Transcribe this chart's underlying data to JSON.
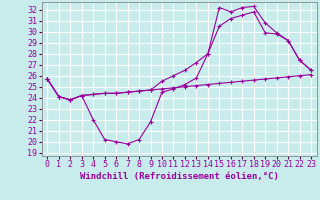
{
  "title": "",
  "xlabel": "Windchill (Refroidissement éolien,°C)",
  "ylabel": "",
  "bg_color": "#c8ecec",
  "line_color": "#990099",
  "grid_color": "#ffffff",
  "xlim": [
    -0.5,
    23.5
  ],
  "ylim": [
    18.7,
    32.7
  ],
  "yticks": [
    19,
    20,
    21,
    22,
    23,
    24,
    25,
    26,
    27,
    28,
    29,
    30,
    31,
    32
  ],
  "xticks": [
    0,
    1,
    2,
    3,
    4,
    5,
    6,
    7,
    8,
    9,
    10,
    11,
    12,
    13,
    14,
    15,
    16,
    17,
    18,
    19,
    20,
    21,
    22,
    23
  ],
  "hours": [
    0,
    1,
    2,
    3,
    4,
    5,
    6,
    7,
    8,
    9,
    10,
    11,
    12,
    13,
    14,
    15,
    16,
    17,
    18,
    19,
    20,
    21,
    22,
    23
  ],
  "line1": [
    25.7,
    24.1,
    23.8,
    24.2,
    24.3,
    24.4,
    24.4,
    24.5,
    24.6,
    24.7,
    24.8,
    24.9,
    25.0,
    25.1,
    25.2,
    25.3,
    25.4,
    25.5,
    25.6,
    25.7,
    25.8,
    25.9,
    26.0,
    26.1
  ],
  "line2": [
    25.7,
    24.1,
    23.8,
    24.2,
    22.0,
    20.2,
    20.0,
    19.8,
    20.2,
    21.8,
    24.5,
    24.8,
    25.2,
    25.8,
    28.0,
    30.5,
    31.2,
    31.5,
    31.8,
    29.9,
    29.8,
    29.2,
    27.4,
    26.5
  ],
  "line3": [
    25.7,
    24.1,
    23.8,
    24.2,
    24.3,
    24.4,
    24.4,
    24.5,
    24.6,
    24.7,
    25.5,
    26.0,
    26.5,
    27.2,
    28.0,
    32.2,
    31.8,
    32.2,
    32.3,
    30.8,
    29.9,
    29.2,
    27.4,
    26.5
  ],
  "xlabel_fontsize": 6.5,
  "tick_fontsize": 6.0,
  "marker": "+"
}
